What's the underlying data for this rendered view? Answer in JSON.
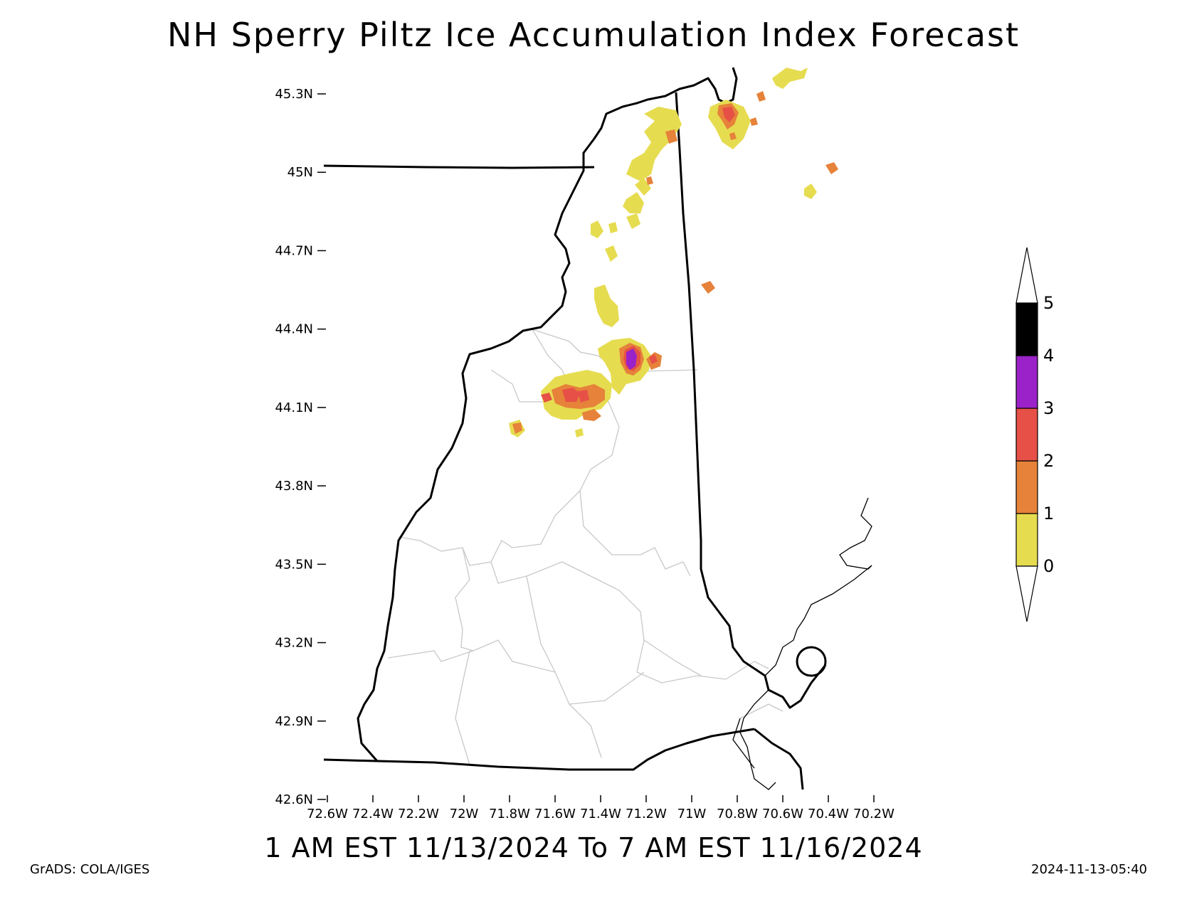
{
  "title": "NH Sperry Piltz Ice Accumulation Index Forecast",
  "subtitle": "1 AM EST 11/13/2024 To 7 AM EST 11/16/2024",
  "credit": "GrADS: COLA/IGES",
  "timestamp": "2024-11-13-05:40",
  "map": {
    "lat_ticks": [
      "45.3N",
      "45N",
      "44.7N",
      "44.4N",
      "44.1N",
      "43.8N",
      "43.5N",
      "43.2N",
      "42.9N",
      "42.6N"
    ],
    "lon_ticks": [
      "72.6W",
      "72.4W",
      "72.2W",
      "72W",
      "71.8W",
      "71.6W",
      "71.4W",
      "71.2W",
      "71W",
      "70.8W",
      "70.6W",
      "70.4W",
      "70.2W"
    ]
  },
  "colorbar": {
    "labels": [
      "0",
      "1",
      "2",
      "3",
      "4",
      "5"
    ],
    "colors": [
      "#e6dc50",
      "#e6823a",
      "#e65046",
      "#9a22c8",
      "#000000"
    ]
  },
  "colors": {
    "level0": "#e6dc50",
    "level1": "#e6823a",
    "level2": "#e65046",
    "level3": "#9a22c8",
    "county_line": "#c8c8c8",
    "state_line": "#000000"
  }
}
